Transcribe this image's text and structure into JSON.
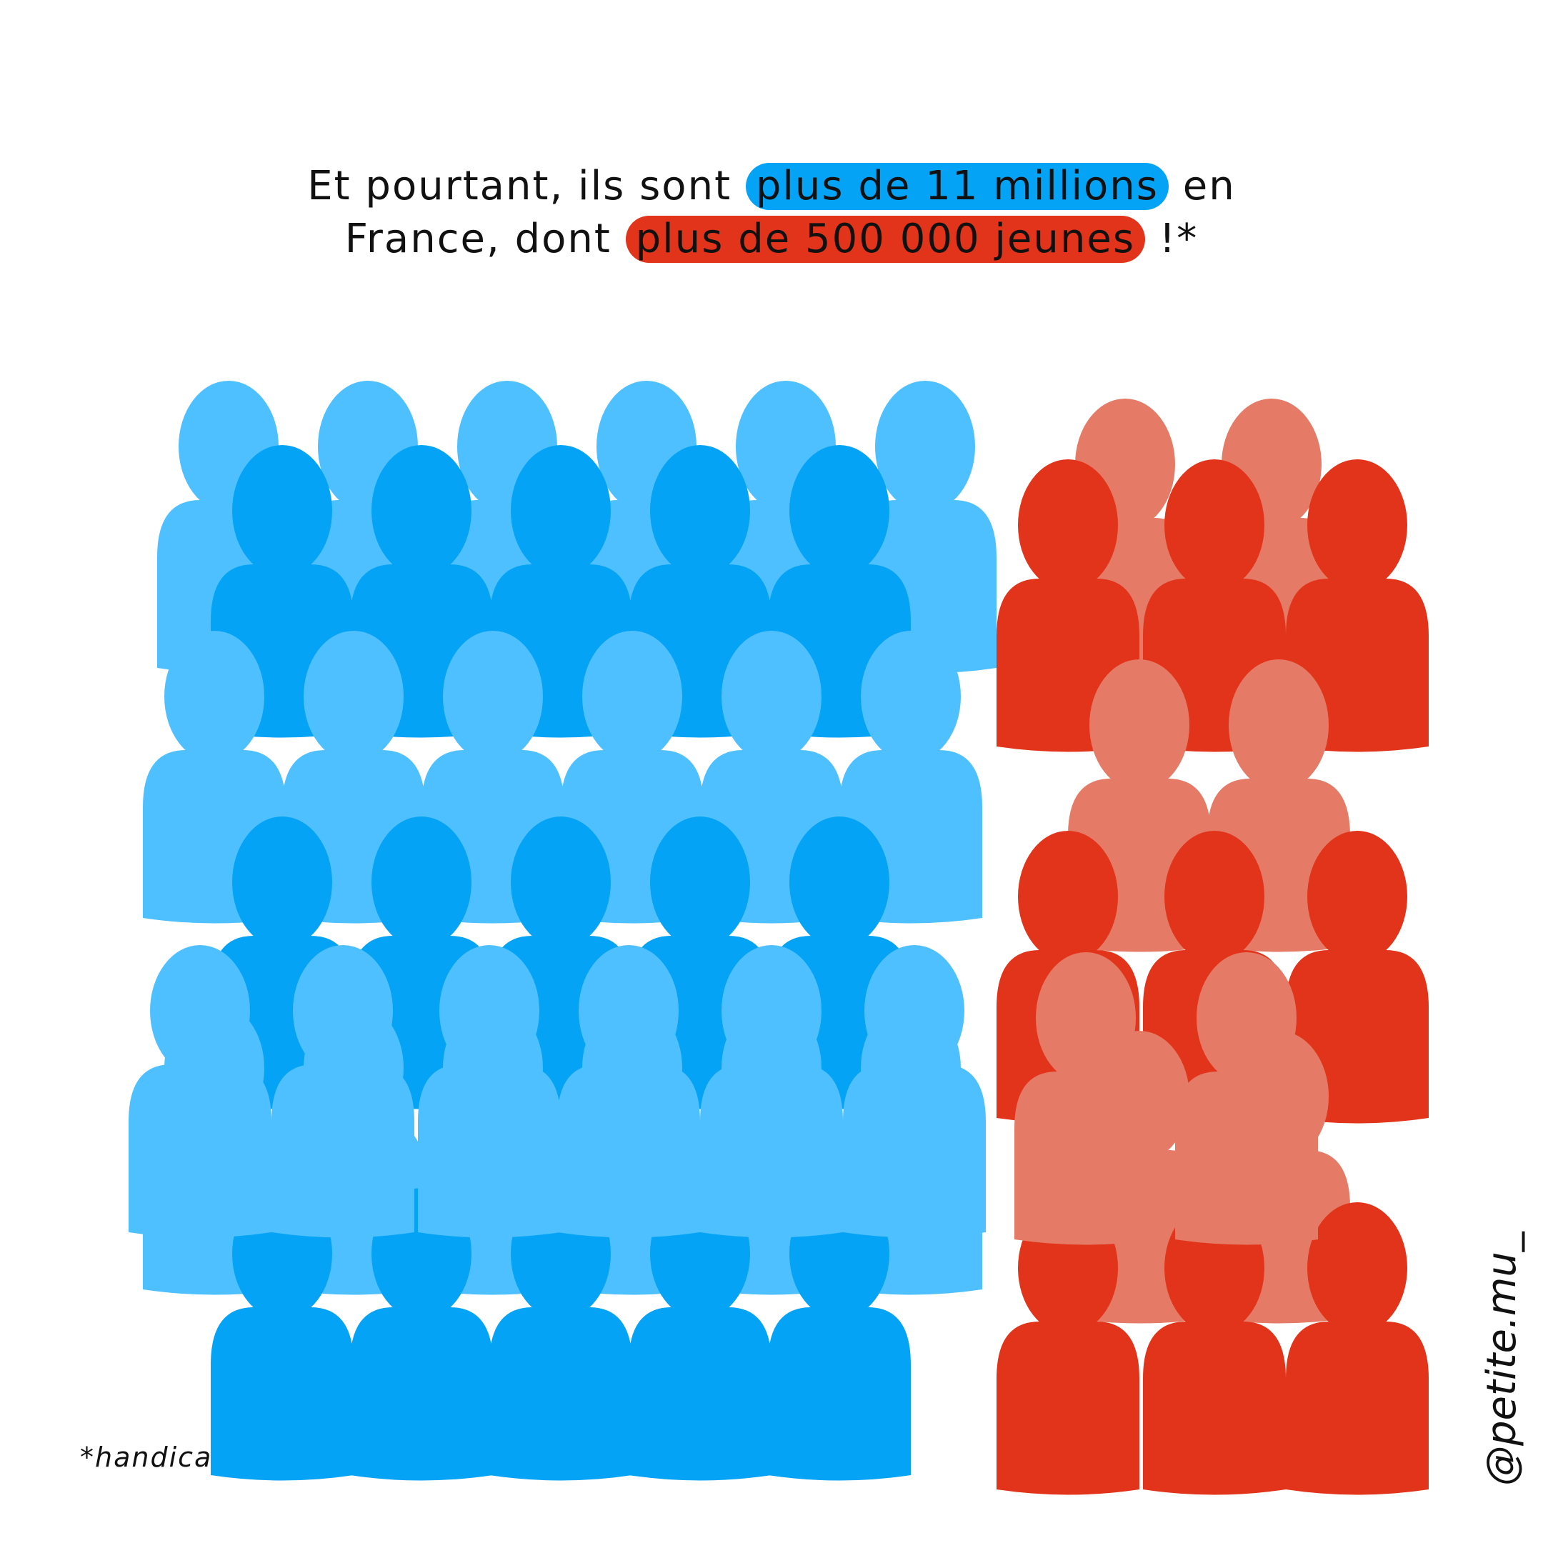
{
  "headline": {
    "line1_before": "Et pourtant, ils sont ",
    "line1_highlight": "plus de 11 millions",
    "line1_after": " en",
    "line2_before": "France, dont ",
    "line2_highlight": "plus de 500 000 jeunes",
    "line2_after": " !*"
  },
  "source_note": "*handicap.gouv.fr",
  "signature": "@petite.mu_",
  "colors": {
    "light_blue": "#4fc0ff",
    "deep_blue": "#05a3f5",
    "light_red": "#e57b66",
    "deep_red": "#e2341a",
    "highlight_blue": "#05a3f5",
    "highlight_red": "#e2341a"
  }
}
